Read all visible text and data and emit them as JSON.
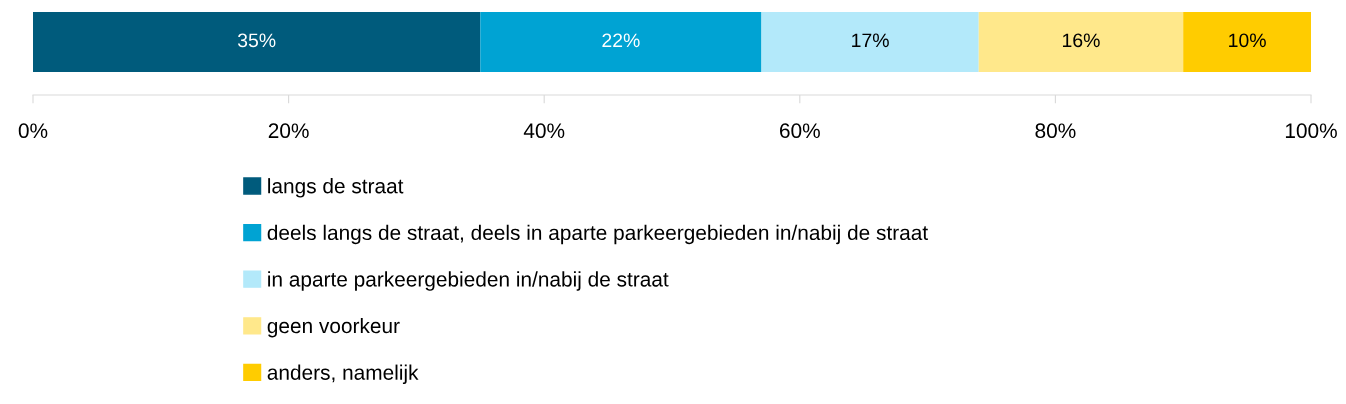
{
  "chart_data": {
    "type": "bar",
    "orientation": "horizontal",
    "stacked": true,
    "categories": [
      null
    ],
    "series": [
      {
        "name": "langs de straat",
        "color": "#005b7c",
        "values": [
          35
        ],
        "value_labels": [
          "35%"
        ]
      },
      {
        "name": "deels langs de straat, deels in aparte parkeergebieden in/nabij de straat",
        "color": "#00a3d3",
        "values": [
          22
        ],
        "value_labels": [
          "22%"
        ]
      },
      {
        "name": "in aparte parkeergebieden in/nabij de straat",
        "color": "#b3e9fa",
        "values": [
          17
        ],
        "value_labels": [
          "17%"
        ]
      },
      {
        "name": "geen voorkeur",
        "color": "#ffe88b",
        "values": [
          16
        ],
        "value_labels": [
          "16%"
        ]
      },
      {
        "name": "anders, namelijk",
        "color": "#ffcc00",
        "values": [
          10
        ],
        "value_labels": [
          "10%"
        ]
      }
    ],
    "xlim": [
      0,
      100
    ],
    "xticks": [
      {
        "value": 0,
        "label": "0%"
      },
      {
        "value": 20,
        "label": "20%"
      },
      {
        "value": 40,
        "label": "40%"
      },
      {
        "value": 60,
        "label": "60%"
      },
      {
        "value": 80,
        "label": "80%"
      },
      {
        "value": 100,
        "label": "100%"
      }
    ],
    "grid": false,
    "legend": "bottom"
  }
}
